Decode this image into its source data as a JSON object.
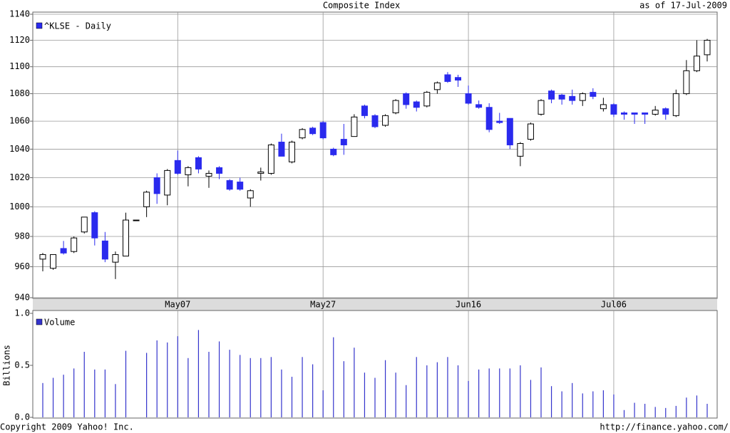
{
  "chart_data": [
    {
      "type": "candlestick",
      "title": "Composite Index",
      "subtitle": "as of 17-Jul-2009",
      "legend": "^KLSE - Daily",
      "log_scale": true,
      "grid": true,
      "up_color": "#ffffff",
      "up_edge_color": "#000000",
      "down_color": "#2a2aee",
      "categories": [
        null,
        null,
        null,
        null,
        null,
        null,
        null,
        null,
        null,
        null,
        null,
        null,
        null,
        "May07",
        null,
        null,
        null,
        null,
        null,
        null,
        null,
        null,
        null,
        null,
        null,
        null,
        null,
        "May27",
        null,
        null,
        null,
        null,
        null,
        null,
        null,
        null,
        null,
        null,
        null,
        null,
        null,
        "Jun16",
        null,
        null,
        null,
        null,
        null,
        null,
        null,
        null,
        null,
        null,
        null,
        null,
        null,
        "Jul06",
        null,
        null,
        null,
        null,
        null,
        null,
        null,
        null,
        null
      ],
      "open": [
        965,
        959,
        972,
        970,
        983,
        996,
        977,
        963,
        967,
        991,
        1000,
        1020,
        1008,
        1032,
        1022,
        1034,
        1021,
        1027,
        1018,
        1017,
        1006,
        1023,
        1023,
        1045,
        1031,
        1048,
        1055,
        1059,
        1040,
        1047,
        1049,
        1071,
        1064,
        1057,
        1066,
        1080,
        1074,
        1071,
        1083,
        1094,
        1092,
        1080,
        1072,
        1070,
        1060,
        1062,
        1035,
        1047,
        1065,
        1082,
        1079,
        1078,
        1075,
        1081,
        1069,
        1072,
        1066,
        1066,
        1066,
        1065,
        1069,
        1064,
        1080,
        1097,
        1109
      ],
      "high": [
        969,
        968,
        977,
        980,
        993,
        997,
        983,
        970,
        996,
        991,
        1011,
        1023,
        1026,
        1039,
        1028,
        1035,
        1025,
        1028,
        1019,
        1020,
        1012,
        1027,
        1044,
        1051,
        1046,
        1055,
        1056,
        1060,
        1041,
        1058,
        1065,
        1072,
        1065,
        1065,
        1076,
        1081,
        1075,
        1082,
        1089,
        1096,
        1094,
        1086,
        1075,
        1073,
        1066,
        1062,
        1045,
        1059,
        1076,
        1083,
        1080,
        1083,
        1081,
        1084,
        1077,
        1073,
        1067,
        1066,
        1066,
        1071,
        1070,
        1083,
        1105,
        1120,
        1121
      ],
      "low": [
        957,
        958,
        968,
        969,
        982,
        974,
        963,
        952,
        967,
        991,
        993,
        1002,
        1001,
        1022,
        1014,
        1023,
        1013,
        1019,
        1011,
        1011,
        1000,
        1018,
        1022,
        1035,
        1030,
        1047,
        1050,
        1047,
        1035,
        1036,
        1049,
        1062,
        1055,
        1056,
        1065,
        1069,
        1067,
        1070,
        1080,
        1088,
        1085,
        1072,
        1069,
        1052,
        1058,
        1040,
        1028,
        1046,
        1064,
        1073,
        1072,
        1072,
        1071,
        1076,
        1067,
        1063,
        1061,
        1058,
        1058,
        1064,
        1061,
        1063,
        1079,
        1096,
        1104
      ],
      "close": [
        968,
        968,
        969,
        979,
        993,
        979,
        965,
        968,
        991,
        991,
        1010,
        1009,
        1025,
        1023,
        1027,
        1026,
        1023,
        1023,
        1012,
        1012,
        1011,
        1024,
        1043,
        1035,
        1045,
        1054,
        1051,
        1048,
        1036,
        1043,
        1063,
        1064,
        1056,
        1064,
        1075,
        1072,
        1070,
        1081,
        1088,
        1089,
        1090,
        1073,
        1070,
        1054,
        1059,
        1043,
        1044,
        1058,
        1075,
        1076,
        1076,
        1075,
        1080,
        1078,
        1072,
        1065,
        1065,
        1065,
        1065,
        1068,
        1065,
        1080,
        1097,
        1108,
        1120
      ],
      "ylim": [
        940,
        1140
      ],
      "yticks": [
        940,
        960,
        980,
        1000,
        1020,
        1040,
        1060,
        1080,
        1100,
        1120,
        1140
      ]
    },
    {
      "type": "bar",
      "legend": "Volume",
      "ylabel": "Billions",
      "color": "#3333cc",
      "grid": false,
      "values": [
        0.33,
        0.38,
        0.41,
        0.47,
        0.63,
        0.46,
        0.46,
        0.32,
        0.64,
        null,
        0.62,
        0.74,
        0.72,
        0.78,
        0.57,
        0.84,
        0.63,
        0.73,
        0.65,
        0.6,
        0.57,
        0.57,
        0.58,
        0.46,
        0.39,
        0.58,
        0.51,
        0.26,
        0.77,
        0.54,
        0.67,
        0.43,
        0.38,
        0.55,
        0.43,
        0.31,
        0.58,
        0.5,
        0.53,
        0.58,
        0.5,
        0.35,
        0.46,
        0.47,
        0.47,
        0.47,
        0.5,
        0.36,
        0.48,
        0.3,
        0.25,
        0.33,
        0.23,
        0.25,
        0.26,
        0.22,
        0.07,
        0.14,
        0.13,
        0.1,
        0.09,
        0.11,
        0.19,
        0.21,
        0.13
      ],
      "ylim": [
        0,
        1
      ],
      "yticks": [
        {
          "value": 0,
          "label": "0.0"
        },
        {
          "value": 0.5,
          "label": "0.5"
        },
        {
          "value": 1,
          "label": "1.0"
        }
      ]
    }
  ],
  "copyright": "Copyright 2009 Yahoo! Inc.",
  "source_url": "http://finance.yahoo.com/"
}
